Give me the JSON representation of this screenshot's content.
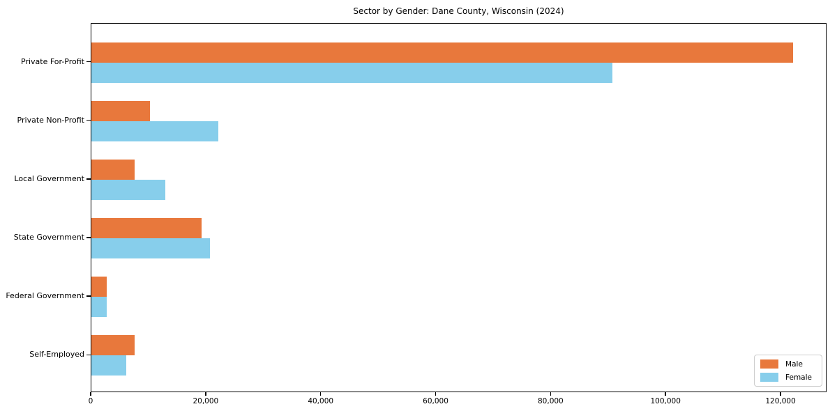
{
  "chart_data": {
    "type": "bar",
    "orientation": "horizontal",
    "title": "Sector by Gender: Dane County, Wisconsin (2024)",
    "categories": [
      "Private For-Profit",
      "Private Non-Profit",
      "Local Government",
      "State Government",
      "Federal Government",
      "Self-Employed"
    ],
    "categories_order_note": "listed top to bottom",
    "series": [
      {
        "name": "Male",
        "color": "#e8783c",
        "values": [
          122000,
          10200,
          7500,
          19200,
          2700,
          7500
        ]
      },
      {
        "name": "Female",
        "color": "#87ceeb",
        "values": [
          90600,
          22100,
          12800,
          20600,
          2700,
          6100
        ]
      }
    ],
    "xlabel": "",
    "ylabel": "",
    "xlim": [
      0,
      128000
    ],
    "xticks": [
      0,
      20000,
      40000,
      60000,
      80000,
      100000,
      120000
    ],
    "xtick_labels": [
      "0",
      "20,000",
      "40,000",
      "60,000",
      "80,000",
      "100,000",
      "120,000"
    ],
    "grid": false,
    "legend": {
      "position": "lower right",
      "entries": [
        "Male",
        "Female"
      ]
    }
  }
}
